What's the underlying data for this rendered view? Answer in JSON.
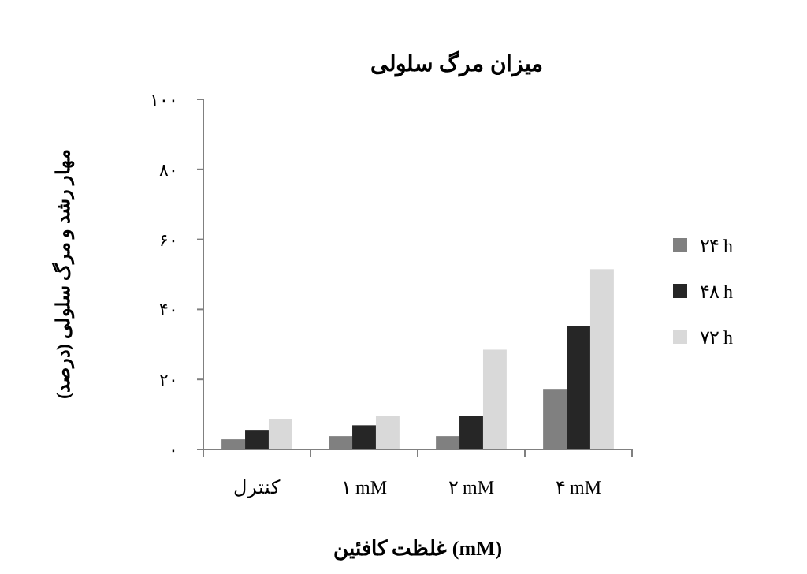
{
  "chart_data": {
    "type": "bar",
    "title": "میزان مرگ سلولی",
    "xlabel": "غلظت کافئین (mM)",
    "ylabel": "مهار رشد و مرگ سلولی (درصد)",
    "categories": [
      "کنترل",
      "۱ mM",
      "۲ mM",
      "۴ mM"
    ],
    "series": [
      {
        "name": "۲۴ h",
        "color": "#808080",
        "values": [
          2.9,
          3.8,
          3.8,
          17.3
        ]
      },
      {
        "name": "۴۸ h",
        "color": "#262626",
        "values": [
          5.6,
          6.9,
          9.6,
          35.3
        ]
      },
      {
        "name": "۷۲ h",
        "color": "#d9d9d9",
        "values": [
          8.7,
          9.6,
          28.5,
          51.5
        ]
      }
    ],
    "ylim": [
      0,
      100
    ],
    "yticks": [
      {
        "value": 0,
        "label": "۰"
      },
      {
        "value": 20,
        "label": "۲۰"
      },
      {
        "value": 40,
        "label": "۴۰"
      },
      {
        "value": 60,
        "label": "۶۰"
      },
      {
        "value": 80,
        "label": "۸۰"
      },
      {
        "value": 100,
        "label": "۱۰۰"
      }
    ],
    "grid": false,
    "legend": "right"
  }
}
